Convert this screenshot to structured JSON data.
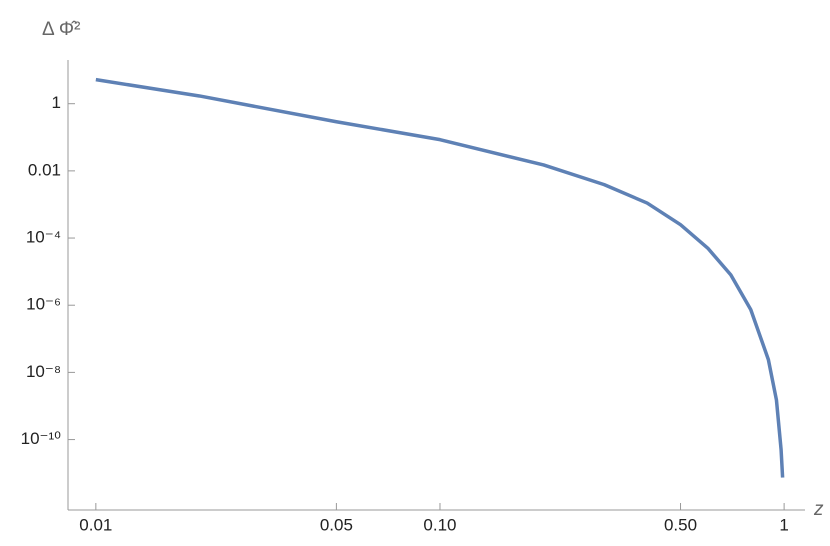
{
  "chart_data": {
    "type": "line",
    "y_label": "Δ Φ̂²",
    "x_label": "z",
    "x_scale": "log",
    "y_scale": "log",
    "x": [
      0.01,
      0.02,
      0.05,
      0.1,
      0.2,
      0.3,
      0.4,
      0.5,
      0.6,
      0.7,
      0.8,
      0.9,
      0.95,
      0.98,
      0.99
    ],
    "series": [
      {
        "name": "ΔΦ̂²",
        "color": "#5e81b5",
        "values": [
          5.2,
          1.7,
          0.29,
          0.085,
          0.015,
          0.0039,
          0.0011,
          0.00025,
          5e-05,
          8e-06,
          7.4e-07,
          2.4e-08,
          1.5e-09,
          5e-11,
          7.4e-12
        ]
      }
    ],
    "xlim": [
      0.0083,
      1.15
    ],
    "ylim": [
      8e-13,
      20
    ],
    "xticks": [
      {
        "value": 0.01,
        "label": "0.01"
      },
      {
        "value": 0.05,
        "label": "0.05"
      },
      {
        "value": 0.1,
        "label": "0.10"
      },
      {
        "value": 0.5,
        "label": "0.50"
      },
      1
    ],
    "yticks": [
      1,
      0.01,
      {
        "value": 0.0001,
        "label": "10⁻⁴"
      },
      {
        "value": 1e-06,
        "label": "10⁻⁶"
      },
      {
        "value": 1e-08,
        "label": "10⁻⁸"
      },
      {
        "value": 1e-10,
        "label": "10⁻¹⁰"
      }
    ]
  }
}
